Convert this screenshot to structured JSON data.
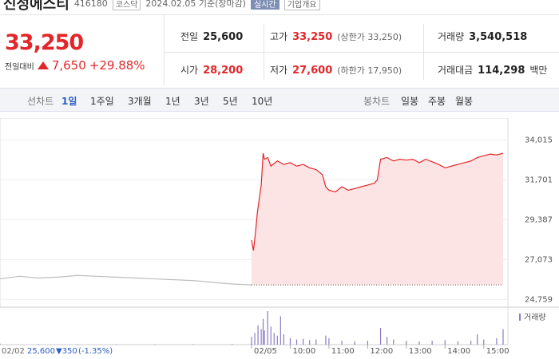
{
  "header": {
    "name": "신성에스티",
    "code": "416180",
    "market": "코스닥",
    "date": "2024.02.05 기준(장마감)",
    "realtime": "실시간",
    "overview": "기업개요"
  },
  "quote": {
    "price": "33,250",
    "change_label": "전일대비",
    "change": "7,650",
    "rate": "+29.88%"
  },
  "info": [
    [
      {
        "label": "전일",
        "value": "25,600"
      },
      {
        "label": "고가",
        "value": "33,250",
        "note": "(상한가 33,250)"
      },
      {
        "label": "거래량",
        "value": "3,540,518"
      }
    ],
    [
      {
        "label": "시가",
        "value": "28,200"
      },
      {
        "label": "저가",
        "value": "27,600",
        "note": "(하한가 17,950)"
      },
      {
        "label": "거래대금",
        "value": "114,298",
        "unit": "백만"
      }
    ]
  ],
  "tabs": {
    "line_label": "선차트",
    "line": [
      "1일",
      "1주일",
      "3개월",
      "1년",
      "3년",
      "5년",
      "10년"
    ],
    "candle_label": "봉차트",
    "candle": [
      "일봉",
      "주봉",
      "월봉"
    ]
  },
  "footer": {
    "date": "02/02",
    "price": "25,600",
    "change": "▼350",
    "rate": "(-1.35%)"
  },
  "chart_data": {
    "type": "line",
    "xlim": [
      "09:00",
      "15:30"
    ],
    "xticks": [
      {
        "value": "09:00",
        "label": "02/05"
      },
      "10:00",
      "11:00",
      "12:00",
      "13:00",
      "14:00",
      "15:00"
    ],
    "ylim": [
      24400,
      35200
    ],
    "yticks": [
      {
        "value": 34015,
        "label": "34,015"
      },
      {
        "value": 31701,
        "label": "31,701"
      },
      {
        "value": 29387,
        "label": "29,387"
      },
      {
        "value": 27073,
        "label": "27,073"
      },
      {
        "value": 24759,
        "label": "24,759"
      }
    ],
    "grid": true,
    "baseline": 25600,
    "series": [
      {
        "color": "#bdbdbd",
        "x": [
          "09:00",
          "09:30",
          "10:00",
          "10:30",
          "11:00",
          "11:30",
          "12:00",
          "12:30",
          "13:00",
          "13:30",
          "14:00",
          "14:30",
          "15:00",
          "15:30"
        ],
        "values": [
          25950,
          26100,
          26000,
          26050,
          26150,
          26100,
          26050,
          26000,
          25950,
          25900,
          25850,
          25750,
          25650,
          25600
        ]
      },
      {
        "color": "#e3262a",
        "fill": "#fde4e4",
        "x": [
          "09:00",
          "09:03",
          "09:06",
          "09:09",
          "09:12",
          "09:15",
          "09:18",
          "09:20",
          "09:25",
          "09:30",
          "09:40",
          "09:50",
          "10:00",
          "10:10",
          "10:20",
          "10:30",
          "10:40",
          "10:50",
          "10:55",
          "11:00",
          "11:10",
          "11:20",
          "11:30",
          "11:40",
          "11:50",
          "12:00",
          "12:10",
          "12:15",
          "12:20",
          "12:30",
          "12:40",
          "12:50",
          "13:00",
          "13:10",
          "13:20",
          "13:30",
          "13:40",
          "13:50",
          "14:00",
          "14:10",
          "14:20",
          "14:30",
          "14:40",
          "14:50",
          "15:00",
          "15:10",
          "15:20",
          "15:30"
        ],
        "values": [
          28200,
          27600,
          28600,
          29800,
          30600,
          31400,
          33250,
          32900,
          33000,
          32500,
          32800,
          32600,
          32700,
          32500,
          32600,
          32400,
          32300,
          32000,
          31300,
          31100,
          31000,
          31300,
          31100,
          31200,
          31300,
          31400,
          31500,
          31700,
          32900,
          33000,
          32800,
          32900,
          32850,
          32900,
          32700,
          32900,
          32750,
          32600,
          32400,
          32500,
          32600,
          32700,
          32800,
          33000,
          33100,
          33200,
          33150,
          33250
        ]
      }
    ],
    "volume": {
      "label": "거래량",
      "color": "#8c7bc6",
      "series": [
        {
          "x": [
            "09:00",
            "10:00",
            "11:00",
            "12:00",
            "13:00",
            "14:00",
            "15:00",
            "15:30"
          ],
          "values": [
            8000,
            5000,
            4000,
            3000,
            3000,
            4000,
            5000,
            9000
          ]
        },
        {
          "x": [
            "09:00",
            "09:05",
            "09:10",
            "09:15",
            "09:18",
            "09:20",
            "09:25",
            "09:30",
            "09:35",
            "09:40",
            "09:45",
            "09:50",
            "10:00",
            "10:10",
            "10:20",
            "10:30",
            "10:40",
            "10:55",
            "11:00",
            "11:20",
            "11:40",
            "12:00",
            "12:20",
            "12:30",
            "12:40",
            "13:00",
            "13:20",
            "13:40",
            "14:00",
            "14:20",
            "14:40",
            "14:50",
            "15:00",
            "15:20",
            "15:30"
          ],
          "values": [
            60000,
            90000,
            150000,
            120000,
            200000,
            110000,
            260000,
            140000,
            90000,
            70000,
            220000,
            80000,
            50000,
            40000,
            45000,
            35000,
            40000,
            70000,
            50000,
            30000,
            25000,
            30000,
            130000,
            60000,
            40000,
            30000,
            25000,
            30000,
            35000,
            25000,
            30000,
            80000,
            40000,
            50000,
            120000
          ]
        }
      ]
    }
  }
}
